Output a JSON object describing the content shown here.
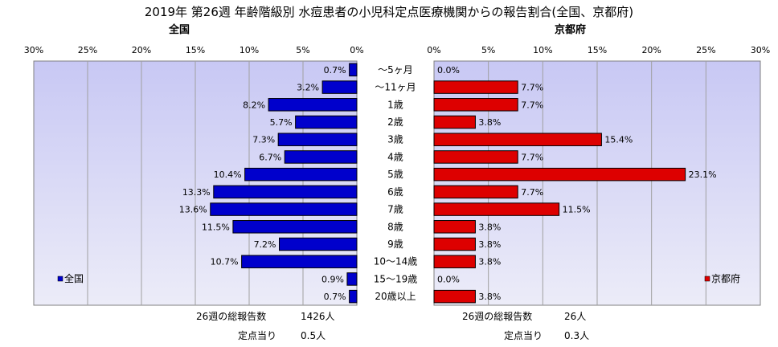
{
  "title": "2019年 第26週 年齢階級別 水痘患者の小児科定点医療機関からの報告割合(全国、京都府)",
  "left_panel": {
    "subtitle": "全国",
    "legend": "全国",
    "total_label": "26週の総報告数",
    "total_value": "1426人",
    "per_site_label": "定点当り",
    "per_site_value": "0.5人"
  },
  "right_panel": {
    "subtitle": "京都府",
    "legend": "京都府",
    "total_label": "26週の総報告数",
    "total_value": "26人",
    "per_site_label": "定点当り",
    "per_site_value": "0.3人"
  },
  "colors": {
    "national": "#0000cc",
    "kyoto": "#dd0000",
    "plot_bg_top": "#c8c8f4",
    "plot_bg_bottom": "#ececf8"
  },
  "chart_data": [
    {
      "type": "bar",
      "orientation": "horizontal",
      "direction": "reversed",
      "title": "全国",
      "categories": [
        "～5ヶ月",
        "～11ヶ月",
        "1歳",
        "2歳",
        "3歳",
        "4歳",
        "5歳",
        "6歳",
        "7歳",
        "8歳",
        "9歳",
        "10～14歳",
        "15～19歳",
        "20歳以上"
      ],
      "series": [
        {
          "name": "全国",
          "values": [
            0.7,
            3.2,
            8.2,
            5.7,
            7.3,
            6.7,
            10.4,
            13.3,
            13.6,
            11.5,
            7.2,
            10.7,
            0.9,
            0.7
          ]
        }
      ],
      "value_labels": [
        "0.7%",
        "3.2%",
        "8.2%",
        "5.7%",
        "7.3%",
        "6.7%",
        "10.4%",
        "13.3%",
        "13.6%",
        "11.5%",
        "7.2%",
        "10.7%",
        "0.9%",
        "0.7%"
      ],
      "xlim": [
        0,
        30
      ],
      "ticks": [
        "0%",
        "5%",
        "10%",
        "15%",
        "20%",
        "25%",
        "30%"
      ],
      "grid": true,
      "legend_position": "bottom-left"
    },
    {
      "type": "bar",
      "orientation": "horizontal",
      "title": "京都府",
      "categories": [
        "～5ヶ月",
        "～11ヶ月",
        "1歳",
        "2歳",
        "3歳",
        "4歳",
        "5歳",
        "6歳",
        "7歳",
        "8歳",
        "9歳",
        "10～14歳",
        "15～19歳",
        "20歳以上"
      ],
      "series": [
        {
          "name": "京都府",
          "values": [
            0.0,
            7.7,
            7.7,
            3.8,
            15.4,
            7.7,
            23.1,
            7.7,
            11.5,
            3.8,
            3.8,
            3.8,
            0.0,
            3.8
          ]
        }
      ],
      "value_labels": [
        "0.0%",
        "7.7%",
        "7.7%",
        "3.8%",
        "15.4%",
        "7.7%",
        "23.1%",
        "7.7%",
        "11.5%",
        "3.8%",
        "3.8%",
        "3.8%",
        "0.0%",
        "3.8%"
      ],
      "xlim": [
        0,
        30
      ],
      "ticks": [
        "0%",
        "5%",
        "10%",
        "15%",
        "20%",
        "25%",
        "30%"
      ],
      "grid": true,
      "legend_position": "bottom-right"
    }
  ]
}
